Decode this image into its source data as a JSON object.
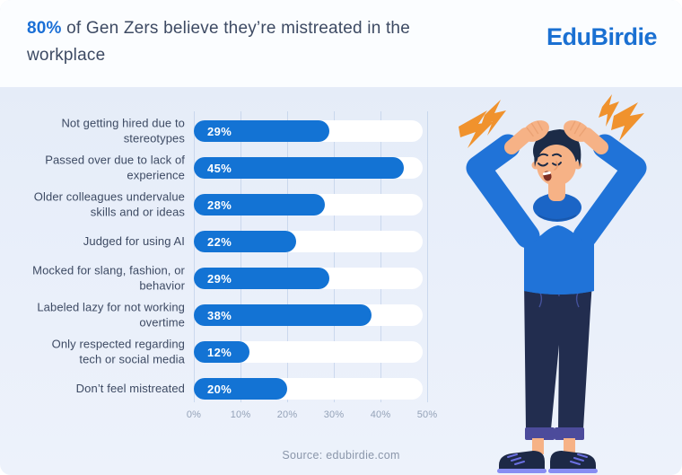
{
  "header": {
    "title_highlight": "80%",
    "title_rest": " of Gen Zers believe they’re mistreated in the workplace",
    "logo": "EduBirdie"
  },
  "chart_data": {
    "type": "bar",
    "orientation": "horizontal",
    "title": "80% of Gen Zers believe they’re mistreated in the workplace",
    "categories": [
      "Not getting hired due to stereotypes",
      "Passed over due to lack of experience",
      "Older colleagues undervalue skills and or ideas",
      "Judged for using AI",
      "Mocked for slang, fashion, or behavior",
      "Labeled lazy for not working overtime",
      "Only respected regarding tech or social media",
      "Don’t feel mistreated"
    ],
    "values": [
      29,
      45,
      28,
      22,
      29,
      38,
      12,
      20
    ],
    "value_labels": [
      "29%",
      "45%",
      "28%",
      "22%",
      "29%",
      "38%",
      "12%",
      "20%"
    ],
    "x_ticks": [
      "0%",
      "10%",
      "20%",
      "30%",
      "40%",
      "50%"
    ],
    "xlim": [
      0,
      50
    ],
    "grid": "vertical",
    "legend": "none",
    "source": "Source: edubirdie.com",
    "colors": {
      "bar": "#1373d4",
      "track": "#ffffff",
      "accent_blue": "#1a6fd6",
      "text_dark": "#3d4a63",
      "tick_gray": "#94a2b8"
    }
  },
  "illustration": {
    "alt": "stressed man holding his head with orange lightning bolts",
    "colors": {
      "skin": "#f6b286",
      "hair": "#1c2b47",
      "hoodie": "#2073d8",
      "pants": "#222d4f",
      "cuffs": "#4c4b9b",
      "bolts": "#f0922d"
    }
  }
}
